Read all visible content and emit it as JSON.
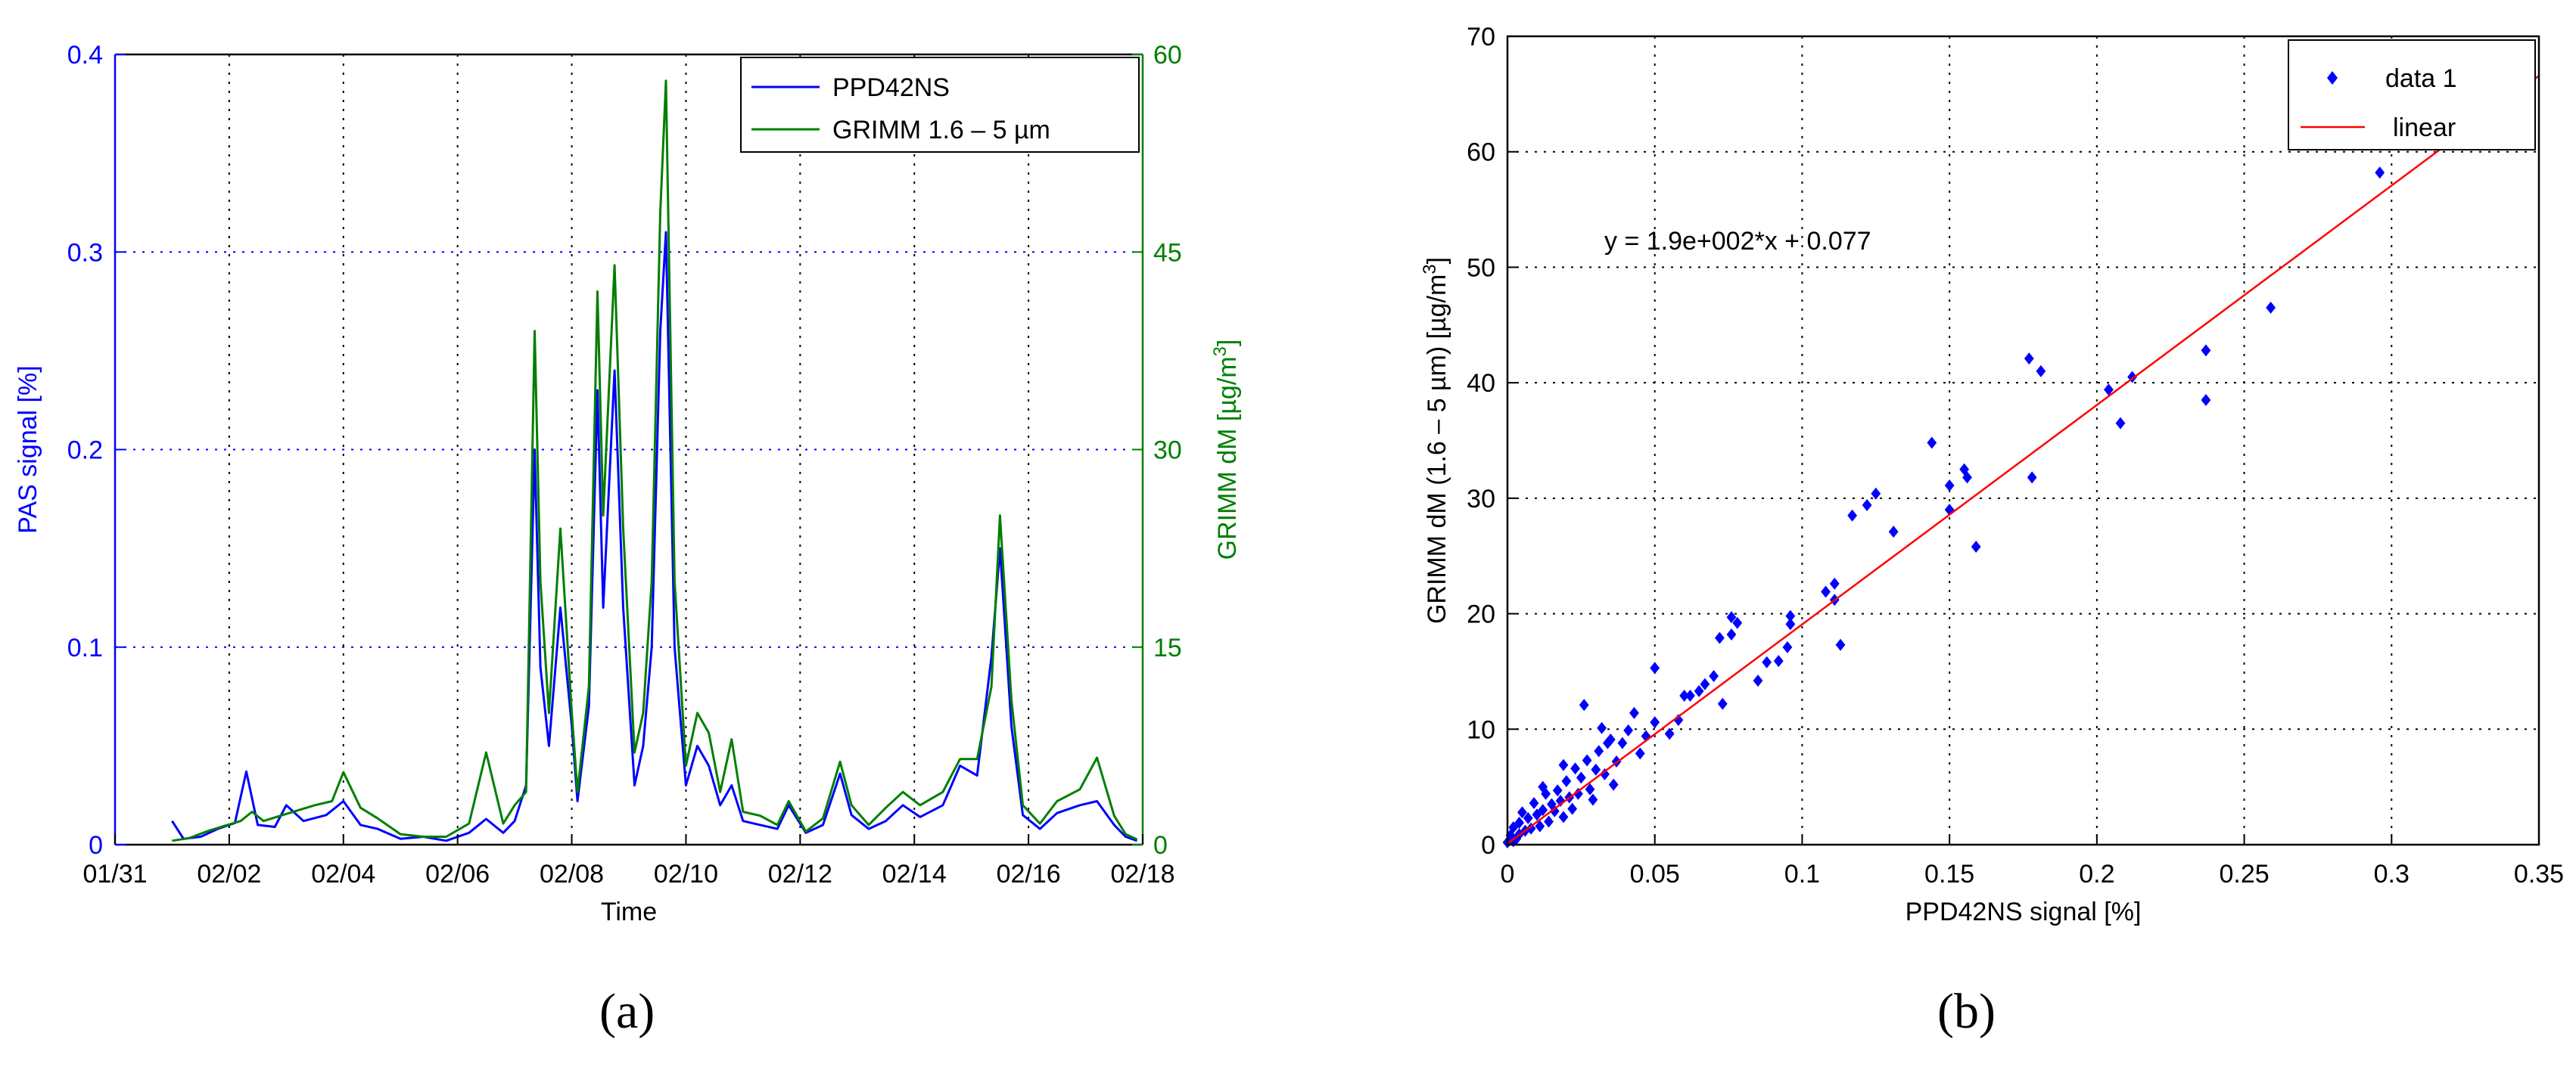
{
  "colors": {
    "blue": "#0000ff",
    "green": "#007f00",
    "red": "#ff0000",
    "grid": "#000000",
    "axis": "#000000"
  },
  "chart_data": [
    {
      "type": "line",
      "panel_label": "(a)",
      "xlabel": "Time",
      "ylabel_left": "PAS signal [%]",
      "ylabel_right": "GRIMM dM [µg/m3]",
      "x_tick_labels": [
        "01/31",
        "02/02",
        "02/04",
        "02/06",
        "02/08",
        "02/10",
        "02/12",
        "02/14",
        "02/16",
        "02/18"
      ],
      "xlim": [
        0,
        18
      ],
      "ylim_left": [
        0,
        0.4
      ],
      "yticks_left": [
        "0",
        "0.1",
        "0.2",
        "0.3",
        "0.4"
      ],
      "ylim_right": [
        0,
        60
      ],
      "yticks_right": [
        "0",
        "15",
        "30",
        "45",
        "60"
      ],
      "grid": true,
      "legend": {
        "position": "top-right",
        "entries": [
          "PPD42NS",
          "GRIMM 1.6 – 5 µm"
        ]
      },
      "series": [
        {
          "name": "PPD42NS",
          "axis": "left",
          "points": [
            [
              1.0,
              0.012
            ],
            [
              1.2,
              0.003
            ],
            [
              1.5,
              0.004
            ],
            [
              1.8,
              0.008
            ],
            [
              2.1,
              0.011
            ],
            [
              2.3,
              0.037
            ],
            [
              2.5,
              0.01
            ],
            [
              2.8,
              0.009
            ],
            [
              3.0,
              0.02
            ],
            [
              3.3,
              0.012
            ],
            [
              3.7,
              0.015
            ],
            [
              4.0,
              0.022
            ],
            [
              4.3,
              0.01
            ],
            [
              4.6,
              0.008
            ],
            [
              5.0,
              0.003
            ],
            [
              5.4,
              0.004
            ],
            [
              5.8,
              0.002
            ],
            [
              6.2,
              0.006
            ],
            [
              6.5,
              0.013
            ],
            [
              6.8,
              0.006
            ],
            [
              7.0,
              0.012
            ],
            [
              7.2,
              0.03
            ],
            [
              7.35,
              0.2
            ],
            [
              7.45,
              0.09
            ],
            [
              7.6,
              0.05
            ],
            [
              7.8,
              0.12
            ],
            [
              8.0,
              0.06
            ],
            [
              8.1,
              0.022
            ],
            [
              8.3,
              0.07
            ],
            [
              8.45,
              0.23
            ],
            [
              8.55,
              0.12
            ],
            [
              8.75,
              0.24
            ],
            [
              8.9,
              0.12
            ],
            [
              9.1,
              0.03
            ],
            [
              9.25,
              0.05
            ],
            [
              9.4,
              0.1
            ],
            [
              9.55,
              0.26
            ],
            [
              9.65,
              0.31
            ],
            [
              9.8,
              0.1
            ],
            [
              10.0,
              0.03
            ],
            [
              10.2,
              0.05
            ],
            [
              10.4,
              0.04
            ],
            [
              10.6,
              0.02
            ],
            [
              10.8,
              0.03
            ],
            [
              11.0,
              0.012
            ],
            [
              11.3,
              0.01
            ],
            [
              11.6,
              0.008
            ],
            [
              11.8,
              0.02
            ],
            [
              12.1,
              0.006
            ],
            [
              12.4,
              0.01
            ],
            [
              12.7,
              0.036
            ],
            [
              12.9,
              0.015
            ],
            [
              13.2,
              0.008
            ],
            [
              13.5,
              0.012
            ],
            [
              13.8,
              0.02
            ],
            [
              14.1,
              0.014
            ],
            [
              14.5,
              0.02
            ],
            [
              14.8,
              0.04
            ],
            [
              15.1,
              0.035
            ],
            [
              15.35,
              0.095
            ],
            [
              15.5,
              0.15
            ],
            [
              15.7,
              0.06
            ],
            [
              15.9,
              0.015
            ],
            [
              16.2,
              0.008
            ],
            [
              16.5,
              0.016
            ],
            [
              16.9,
              0.02
            ],
            [
              17.2,
              0.022
            ],
            [
              17.5,
              0.01
            ],
            [
              17.7,
              0.004
            ],
            [
              17.9,
              0.002
            ]
          ]
        },
        {
          "name": "GRIMM 1.6 – 5 µm",
          "axis": "right",
          "points": [
            [
              1.0,
              0.3
            ],
            [
              1.3,
              0.5
            ],
            [
              1.6,
              1.0
            ],
            [
              1.9,
              1.4
            ],
            [
              2.2,
              1.8
            ],
            [
              2.4,
              2.5
            ],
            [
              2.6,
              1.8
            ],
            [
              2.9,
              2.2
            ],
            [
              3.2,
              2.6
            ],
            [
              3.5,
              3.0
            ],
            [
              3.8,
              3.3
            ],
            [
              4.0,
              5.5
            ],
            [
              4.3,
              2.8
            ],
            [
              4.6,
              2.0
            ],
            [
              5.0,
              0.8
            ],
            [
              5.4,
              0.6
            ],
            [
              5.8,
              0.6
            ],
            [
              6.2,
              1.6
            ],
            [
              6.5,
              7.0
            ],
            [
              6.8,
              1.6
            ],
            [
              7.0,
              3.0
            ],
            [
              7.2,
              4.0
            ],
            [
              7.35,
              39.0
            ],
            [
              7.45,
              20.0
            ],
            [
              7.6,
              10.0
            ],
            [
              7.8,
              24.0
            ],
            [
              8.0,
              10.0
            ],
            [
              8.1,
              4.0
            ],
            [
              8.3,
              12.0
            ],
            [
              8.45,
              42.0
            ],
            [
              8.55,
              25.0
            ],
            [
              8.75,
              44.0
            ],
            [
              8.9,
              24.0
            ],
            [
              9.1,
              7.0
            ],
            [
              9.25,
              10.0
            ],
            [
              9.4,
              20.0
            ],
            [
              9.55,
              48.0
            ],
            [
              9.65,
              58.0
            ],
            [
              9.8,
              20.0
            ],
            [
              10.0,
              6.0
            ],
            [
              10.2,
              10.0
            ],
            [
              10.4,
              8.5
            ],
            [
              10.6,
              4.0
            ],
            [
              10.8,
              8.0
            ],
            [
              11.0,
              2.5
            ],
            [
              11.3,
              2.2
            ],
            [
              11.6,
              1.5
            ],
            [
              11.8,
              3.3
            ],
            [
              12.1,
              1.0
            ],
            [
              12.4,
              2.0
            ],
            [
              12.7,
              6.3
            ],
            [
              12.9,
              3.0
            ],
            [
              13.2,
              1.5
            ],
            [
              13.5,
              2.8
            ],
            [
              13.8,
              4.0
            ],
            [
              14.1,
              3.0
            ],
            [
              14.5,
              4.0
            ],
            [
              14.8,
              6.5
            ],
            [
              15.1,
              6.5
            ],
            [
              15.35,
              12.0
            ],
            [
              15.5,
              25.0
            ],
            [
              15.7,
              11.0
            ],
            [
              15.9,
              3.0
            ],
            [
              16.2,
              1.6
            ],
            [
              16.5,
              3.3
            ],
            [
              16.9,
              4.2
            ],
            [
              17.2,
              6.6
            ],
            [
              17.5,
              2.2
            ],
            [
              17.7,
              0.8
            ],
            [
              17.9,
              0.4
            ]
          ]
        }
      ]
    },
    {
      "type": "scatter",
      "panel_label": "(b)",
      "xlabel": "PPD42NS signal [%]",
      "ylabel": "GRIMM dM (1.6 – 5 µm) [µg/m3]",
      "xlim": [
        0,
        0.35
      ],
      "xticks": [
        "0",
        "0.05",
        "0.1",
        "0.15",
        "0.2",
        "0.25",
        "0.3",
        "0.35"
      ],
      "ylim": [
        0,
        70
      ],
      "yticks": [
        "0",
        "10",
        "20",
        "30",
        "40",
        "50",
        "60",
        "70"
      ],
      "grid": true,
      "legend": {
        "position": "top-right",
        "entries": [
          "data 1",
          "linear"
        ]
      },
      "annotation": "y = 1.9e+002*x + 0.077",
      "fit": {
        "slope": 190,
        "intercept": 0.077
      },
      "points": [
        [
          0.296,
          58.2
        ],
        [
          0.259,
          46.5
        ],
        [
          0.237,
          42.8
        ],
        [
          0.237,
          38.5
        ],
        [
          0.212,
          40.5
        ],
        [
          0.208,
          36.5
        ],
        [
          0.204,
          39.4
        ],
        [
          0.181,
          41.0
        ],
        [
          0.177,
          42.1
        ],
        [
          0.178,
          31.8
        ],
        [
          0.159,
          25.8
        ],
        [
          0.155,
          32.5
        ],
        [
          0.156,
          31.8
        ],
        [
          0.15,
          31.1
        ],
        [
          0.15,
          29.0
        ],
        [
          0.144,
          34.8
        ],
        [
          0.131,
          27.1
        ],
        [
          0.125,
          30.4
        ],
        [
          0.122,
          29.4
        ],
        [
          0.117,
          28.5
        ],
        [
          0.113,
          17.3
        ],
        [
          0.111,
          22.6
        ],
        [
          0.111,
          21.2
        ],
        [
          0.108,
          21.9
        ],
        [
          0.096,
          19.8
        ],
        [
          0.096,
          19.1
        ],
        [
          0.095,
          17.1
        ],
        [
          0.092,
          15.9
        ],
        [
          0.088,
          15.8
        ],
        [
          0.085,
          14.2
        ],
        [
          0.078,
          19.2
        ],
        [
          0.076,
          19.7
        ],
        [
          0.076,
          18.2
        ],
        [
          0.073,
          12.2
        ],
        [
          0.072,
          17.9
        ],
        [
          0.07,
          14.6
        ],
        [
          0.067,
          13.9
        ],
        [
          0.065,
          13.3
        ],
        [
          0.062,
          12.9
        ],
        [
          0.06,
          12.9
        ],
        [
          0.058,
          10.8
        ],
        [
          0.055,
          9.6
        ],
        [
          0.05,
          15.3
        ],
        [
          0.05,
          10.6
        ],
        [
          0.047,
          9.4
        ],
        [
          0.045,
          7.9
        ],
        [
          0.043,
          11.4
        ],
        [
          0.041,
          9.9
        ],
        [
          0.039,
          8.8
        ],
        [
          0.037,
          7.2
        ],
        [
          0.036,
          5.2
        ],
        [
          0.035,
          9.1
        ],
        [
          0.034,
          8.8
        ],
        [
          0.033,
          6.1
        ],
        [
          0.032,
          10.1
        ],
        [
          0.031,
          8.1
        ],
        [
          0.03,
          6.5
        ],
        [
          0.028,
          4.8
        ],
        [
          0.027,
          7.3
        ],
        [
          0.026,
          12.1
        ],
        [
          0.025,
          5.8
        ],
        [
          0.024,
          4.4
        ],
        [
          0.023,
          6.6
        ],
        [
          0.022,
          3.1
        ],
        [
          0.021,
          4.1
        ],
        [
          0.02,
          5.5
        ],
        [
          0.019,
          2.4
        ],
        [
          0.018,
          3.8
        ],
        [
          0.017,
          4.7
        ],
        [
          0.016,
          2.9
        ],
        [
          0.015,
          3.5
        ],
        [
          0.014,
          2.0
        ],
        [
          0.013,
          4.4
        ],
        [
          0.012,
          3.0
        ],
        [
          0.011,
          1.6
        ],
        [
          0.01,
          2.6
        ],
        [
          0.009,
          3.6
        ],
        [
          0.008,
          1.4
        ],
        [
          0.007,
          2.3
        ],
        [
          0.006,
          1.2
        ],
        [
          0.005,
          2.8
        ],
        [
          0.004,
          0.9
        ],
        [
          0.004,
          1.9
        ],
        [
          0.003,
          0.5
        ],
        [
          0.002,
          1.5
        ],
        [
          0.002,
          0.3
        ],
        [
          0.001,
          0.8
        ],
        [
          0.0,
          0.2
        ],
        [
          0.012,
          5.0
        ],
        [
          0.019,
          6.9
        ],
        [
          0.029,
          3.9
        ]
      ]
    }
  ]
}
